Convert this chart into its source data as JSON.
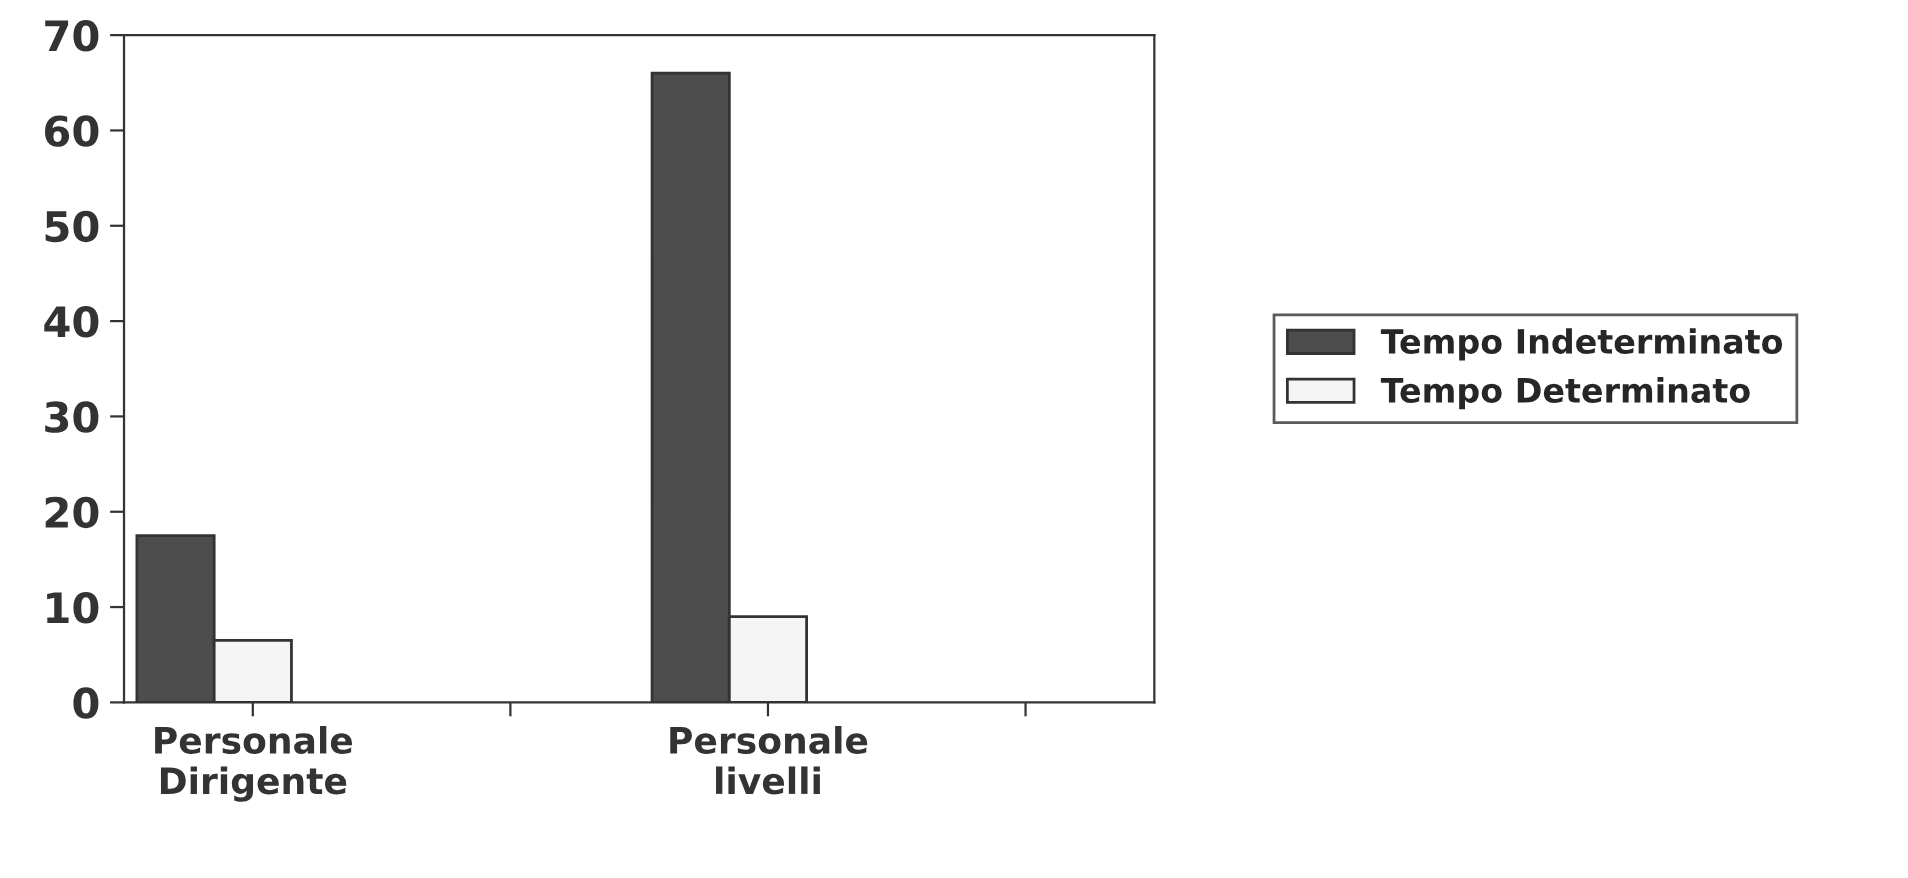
{
  "chart_data": {
    "type": "bar",
    "categories": [
      "Personale\nDirigente",
      null,
      "Personale\nlivelli",
      null
    ],
    "series": [
      {
        "name": "Tempo Indeterminato",
        "color": "#4d4d4d",
        "values": [
          17.5,
          null,
          66,
          null
        ]
      },
      {
        "name": "Tempo Determinato",
        "color": "#f5f5f5",
        "values": [
          6.5,
          null,
          9,
          null
        ]
      }
    ],
    "ylim": [
      0,
      70
    ],
    "yticks": [
      0,
      10,
      20,
      30,
      40,
      50,
      60,
      70
    ],
    "grid": false,
    "legend": "right"
  }
}
